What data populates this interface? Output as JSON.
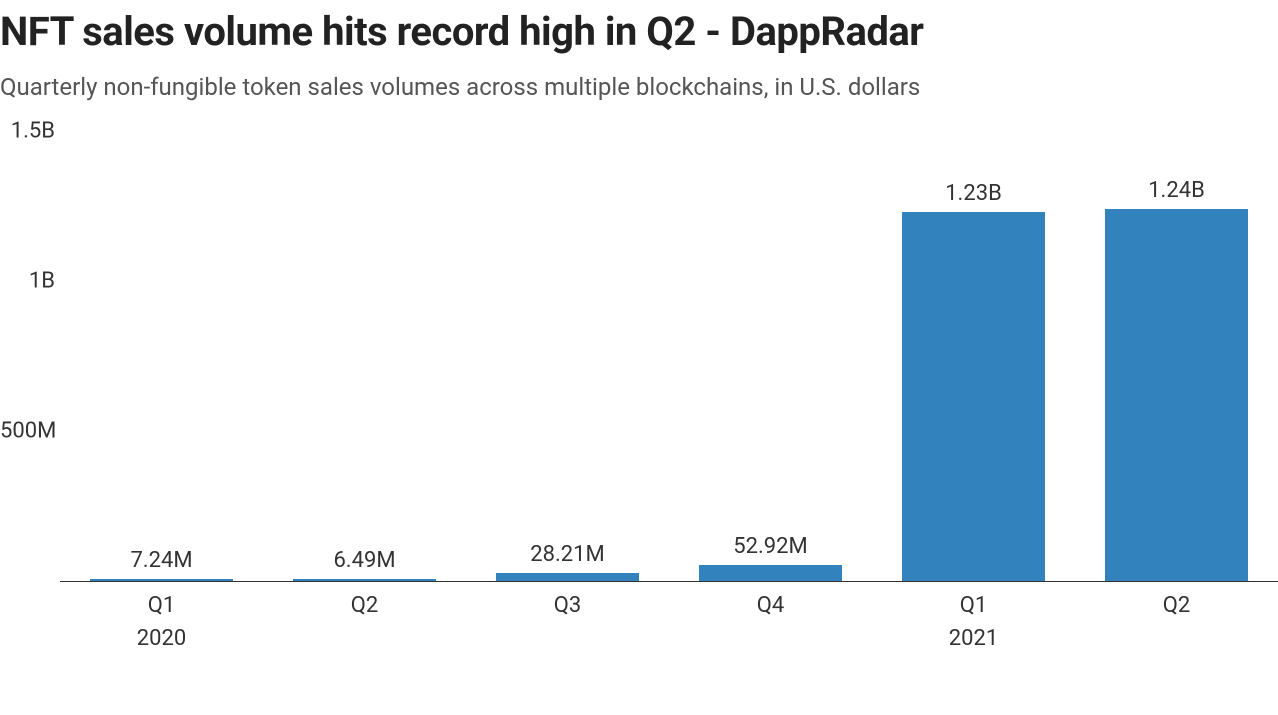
{
  "title": "NFT sales volume hits record high in Q2 - DappRadar",
  "subtitle": "Quarterly non-fungible token sales volumes across multiple blockchains, in U.S. dollars",
  "chart": {
    "type": "bar",
    "bar_color": "#3182bd",
    "background_color": "#ffffff",
    "axis_color": "#333333",
    "text_color": "#333333",
    "title_fontsize": 40,
    "subtitle_fontsize": 24,
    "label_fontsize": 22,
    "tick_fontsize": 22,
    "bar_width_ratio": 0.7,
    "ylim": [
      0,
      1500000000
    ],
    "yticks": [
      {
        "value": 500000000,
        "label": "500M"
      },
      {
        "value": 1000000000,
        "label": "1B"
      },
      {
        "value": 1500000000,
        "label": "1.5B"
      }
    ],
    "data": [
      {
        "quarter": "Q1",
        "year": "2020",
        "value": 7240000,
        "value_label": "7.24M"
      },
      {
        "quarter": "Q2",
        "year": "",
        "value": 6490000,
        "value_label": "6.49M"
      },
      {
        "quarter": "Q3",
        "year": "",
        "value": 28210000,
        "value_label": "28.21M"
      },
      {
        "quarter": "Q4",
        "year": "",
        "value": 52920000,
        "value_label": "52.92M"
      },
      {
        "quarter": "Q1",
        "year": "2021",
        "value": 1230000000,
        "value_label": "1.23B"
      },
      {
        "quarter": "Q2",
        "year": "",
        "value": 1240000000,
        "value_label": "1.24B"
      }
    ]
  }
}
